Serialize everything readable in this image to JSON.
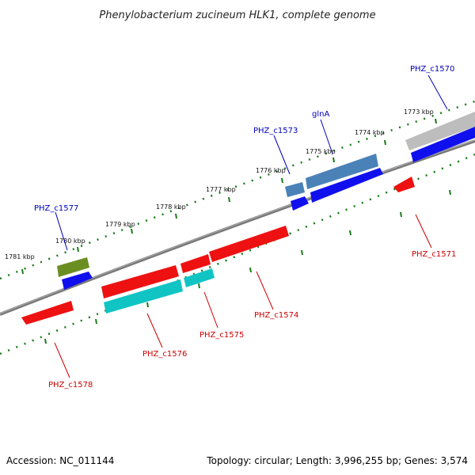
{
  "title": "Phenylobacterium zucineum HLK1, complete genome",
  "footer": {
    "accession": "Accession: NC_011144",
    "summary": "Topology: circular; Length: 3,996,255 bp; Genes: 3,574"
  },
  "colors": {
    "backbone": "#7a7a7a",
    "ticks": "#1a7a1a",
    "forward_label": "#0000bb",
    "reverse_label": "#cc0000",
    "blue": "#1010ee",
    "red": "#ee1111",
    "cyan": "#11c4c4",
    "steelblue": "#4a82b8",
    "olive": "#6b8e23",
    "gray": "#bdbdbd"
  },
  "scale_labels": [
    "1781 kbp",
    "1780 kbp",
    "1779 kbp",
    "1778 kbp",
    "1777 kbp",
    "1776 kbp",
    "1775 kbp",
    "1774 kbp",
    "1773 kbp"
  ],
  "gene_labels": [
    {
      "text": "PHZ_c1570",
      "strand": "forward"
    },
    {
      "text": "glnA",
      "strand": "forward"
    },
    {
      "text": "PHZ_c1573",
      "strand": "forward"
    },
    {
      "text": "PHZ_c1577",
      "strand": "forward"
    },
    {
      "text": "PHZ_c1571",
      "strand": "reverse"
    },
    {
      "text": "PHZ_c1574",
      "strand": "reverse"
    },
    {
      "text": "PHZ_c1575",
      "strand": "reverse"
    },
    {
      "text": "PHZ_c1576",
      "strand": "reverse"
    },
    {
      "text": "PHZ_c1578",
      "strand": "reverse"
    }
  ]
}
